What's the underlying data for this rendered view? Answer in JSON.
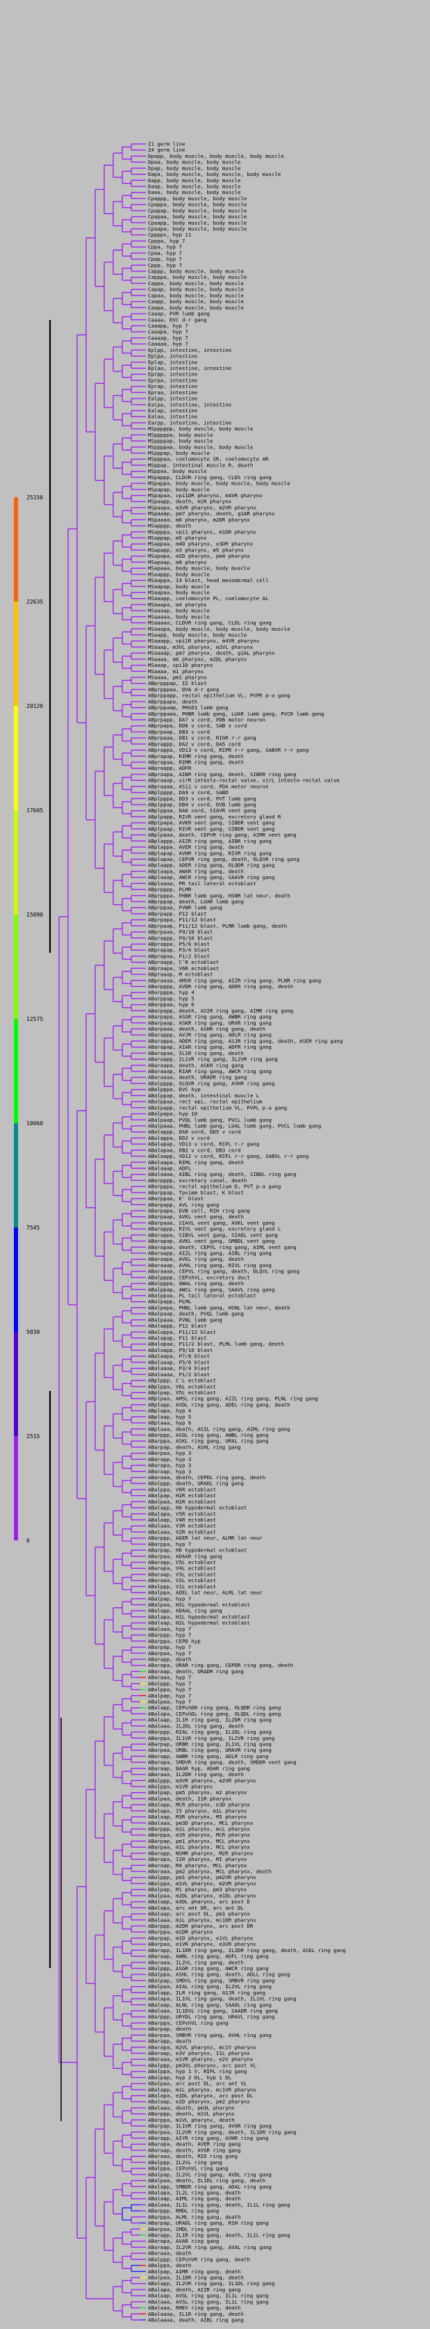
{
  "colors": {
    "background": "#c0c0c0",
    "branch": "#a020f0",
    "branch_alt": "#2020ff",
    "heat_yellow": "#ffff00",
    "heat_green": "#00ff00",
    "heat_red": "#ff0000",
    "trunk": "#000000"
  },
  "legend": {
    "ticks": [
      "25150",
      "22635",
      "20120",
      "17605",
      "15090",
      "12575",
      "10060",
      "7545",
      "5030",
      "2515",
      "0"
    ],
    "segments": [
      {
        "from": 0,
        "to": 2515,
        "color": "#a020f0"
      },
      {
        "from": 2515,
        "to": 5030,
        "color": "#5000d0"
      },
      {
        "from": 5030,
        "to": 7545,
        "color": "#0000ff"
      },
      {
        "from": 7545,
        "to": 10060,
        "color": "#008c8c"
      },
      {
        "from": 10060,
        "to": 12575,
        "color": "#00ff00"
      },
      {
        "from": 12575,
        "to": 15090,
        "color": "#80ff00"
      },
      {
        "from": 15090,
        "to": 17605,
        "color": "#c8ff00"
      },
      {
        "from": 17605,
        "to": 20120,
        "color": "#ffff00"
      },
      {
        "from": 20120,
        "to": 22635,
        "color": "#ffc000"
      },
      {
        "from": 22635,
        "to": 25150,
        "color": "#ff6000"
      }
    ]
  },
  "leaves": [
    "Z1 germ line",
    "Z4 germ line",
    "Dpapp, body muscle, body muscle, body muscle",
    "Dpaa, body muscle, body muscle",
    "Dpap, body muscle, body muscle",
    "Dapa, body muscle, body muscle, body muscle",
    "Dapp, body muscle, body muscle",
    "Daap, body muscle, body muscle",
    "Daaa, body muscle, body muscle",
    "Cpappp, body muscle, body muscle",
    "Cpappa, body muscle, body muscle",
    "Cpapap, body muscle, body muscle",
    "Cpapaa, body muscle, body muscle",
    "Cpaapp, body muscle, body muscle",
    "Cpaapa, body muscle, body muscle",
    "Cppppv, hyp 11",
    "Cpppa, hyp 7",
    "Cppa, hyp 7",
    "Cpaa, hyp 7",
    "Cpap, hyp 7",
    "Cppp, hyp 7",
    "Cappp, body muscle, body muscle",
    "Capppa, body muscle, body muscle",
    "Cappa, body muscle, body muscle",
    "Capap, body muscle, body muscle",
    "Capaa, body muscle, body muscle",
    "Caapp, body muscle, body muscle",
    "Caapa, body muscle, body muscle",
    "Caaap, PVR lumb gang",
    "Caaaa, DVC d-r gang",
    "Caaapp, hyp 7",
    "Caaapa, hyp 7",
    "Caaaap, hyp 7",
    "Caaaaa, hyp 7",
    "Eplpp, intestine, intestine",
    "Eplpa, intestine",
    "Eplap, intestine",
    "Eplaa, intestine, intestine",
    "Eprpp, intestine",
    "Eprpa, intestine",
    "Eprap, intestine",
    "Epraa, intestine",
    "Ealpp, intestine",
    "Ealpa, intestine, intestine",
    "Ealap, intestine",
    "Ealaa, intestine",
    "Earpp, intestine, intestine",
    "MSpppppp, body muscle, body muscle",
    "MSpppppa, body muscle",
    "MSppppap, body muscle",
    "MSppppaa, body muscle, body muscle",
    "MSpppap, body muscle",
    "MSpppaa, coelomocyte SR, coelomocyte AR",
    "MSppap, intestinal muscle R, death",
    "MSppaa, body muscle",
    "MSpappp, CLDVR ring gang, CLDS ring gang",
    "MSpappa, body muscle, body muscle, body muscle",
    "MSpapap, body muscle",
    "MSpapaa, vpi1DR pharynx, m4VR pharynx",
    "MSpaapp, death, m1R pharynx",
    "MSpaapa, m3VR pharynx, m2VR pharynx",
    "MSpaaap, pm7 pharynx, death, g1AR pharynx",
    "MSpaaaa, m6 pharynx, m2DR pharynx",
    "MSapppp, death",
    "MSapppa, vpi1 pharynx, m1DR pharynx",
    "MSappap, m5 pharynx",
    "MSappaa, m4D pharynx, e3DR pharynx",
    "MSapapp, m3 pharynx, m5 pharynx",
    "MSapapa, m2D pharynx, pm4 pharynx",
    "MSapaap, m8 pharynx",
    "MSapaaa, body muscle, body muscle",
    "MSaappp, body muscle",
    "MSaappa, I4 blast, head mesodermal cell",
    "MSaapap, body muscle",
    "MSaapaa, body muscle",
    "MSaaapp, coelomocyte PL, coelomocyte AL",
    "MSaaapa, m4 pharynx",
    "MSaaaap, body muscle",
    "MSaaaaa, body muscle",
    "MSaaaaa, CLDVR ring gang, CLDL ring gang",
    "MSaaapa, body muscle, body muscle, body muscle",
    "MSaapp, body muscle, body muscle",
    "MSaaapp, vpi1R pharynx, m4VR pharynx",
    "MSaaap, m3VL pharynx, m2VL pharynx",
    "MSaaaap, pm7 pharynx, death, g1AL pharynx",
    "MSaaaa, m6 pharynx, m2DL pharynx",
    "MSaaap, vpi1D pharynx",
    "MSaaaa, m1 pharynx",
    "MSaaaa, pm1 pharynx",
    "ABprpppap, I2 blast",
    "ABprpppaa, DVA d-r gang",
    "ABprppapp, rectal epithelium VL, PVPR p-a gang",
    "ABprppapa, death",
    "ABprppaap, PHSO1 lumb gang",
    "ABprppaaa, PHBR lumb gang, LUAR lumb gang, PVCR lumb gang",
    "ABprpapp, DA7 v cord, PDB motor neuron",
    "ABprpapa, DD6 v cord, SAB v cord",
    "ABprpaap, DB3 v cord",
    "ABprpaaa, DB1 v cord, RIGR r-r gang",
    "ABprappp, DA2 v cord, DA5 cord",
    "ABprappa, VD13 v cord, RIPR r-r gang, SABVR r-r gang",
    "ABprapap, RIMR ring gang, death",
    "ABprapaa, RIMR ring gang, death",
    "ABpraapp, ADFR",
    "ABpraapa, AIBR ring gang, death, SIBDR ring gang",
    "ABpraaap, virR intesto-rectal valve, virL intesto-rectal valve",
    "ABpraaaa, AS11 v cord, PDA motor neuron",
    "ABplpppp, DA9 v cord, SABD",
    "ABplpppa, DD3 v cord, PVT lumb gang",
    "ABplppap, DB4 v cord, DVB lumb gang",
    "ABplppaa, DA6 cord, SIAVR vent gang",
    "ABplpapp, RIVR vent gang, excretory gland R",
    "ABplpapa, AVKR vent gang, SIBDR vent gang",
    "ABplpaap, RIVR vent gang, SIBDR vent gang",
    "ABplpaaa, death, CEPVR ring gang, AIMR vent gang",
    "ABplappp, AIZR ring gang, AIBR ring gang",
    "ABplappa, AVER ring gang, death",
    "ABplapap, AVHR ring gang, RIVR ring gang",
    "ABplapaa, CEPVR ring gang, death, OLQVR ring gang",
    "ABplaapp, ADER ring gang, OLQDR ring gang",
    "ABplaapa, AWAR ring gang, death",
    "ABplaaap, AWCR ring gang, SAAVR ring gang",
    "ABplaaaa, PR tail lateral ectoblast",
    "ABprpppp, PLMR",
    "ABprpppa, PHBR lumb gang, HSNR lat neur, death",
    "ABprppap, death, LUAR lumb gang",
    "ABprppaa, PVNR lumb gang",
    "ABprpapp, P12 blast",
    "ABprpapa, P11/12 blast",
    "ABprpaap, P11/12 blast, PLMR lumb gang, death",
    "ABprpaaa, P9/10 blast",
    "ABprappp, P9/10 blast",
    "ABprappa, P5/6 blast",
    "ABprapap, P3/4 blast",
    "ABprapaa, P1/2 blast",
    "ABpraapp, C'R ectoblast",
    "ABpraapa, V6R ectoblast",
    "ABpraaap, M ectoblast",
    "ABpraaaa, AMSR ring gang, AIZR ring gang, PLNR ring gang",
    "ABarpppp, AVDR ring gang, ADER ring gang, death",
    "ABarpppa, hyp 4",
    "ABarppap, hyp 5",
    "ABarppaa, hyp 6",
    "ABarpapp, death, ASIR ring gang, AIMR ring gang",
    "ABarpapa, ASGR ring gang, AWBR ring gang",
    "ABarpaap, ASKR ring gang, URXR ring gang",
    "ABarpaaa, death, ASHR ring gang, death",
    "ABarappp, AVJR ring gang, ADLR ring gang",
    "ABarappa, ADER ring gang, ASJR ring gang, death, ASER ring gang",
    "ABarapap, AIAR ring gang, ADFR ring gang",
    "ABarapaa, IL1R ring gang, death",
    "ABaraapp, IL1VR ring gang, IL2VR ring gang",
    "ABaraapa, death, ASKR ring gang",
    "ABaraaap, RIAR ring gang, AWCR ring gang",
    "ABaraaaa, death, URADR ring gang",
    "ABalpppp, OLQVR ring gang, AVHR ring gang",
    "ABalpppa, DVC hyp",
    "ABalppap, death, intestinal muscle L",
    "ABalppaa, rect epi, rectal epithelium",
    "ABalpapp, rectal epithelium VL, PVPL p-a gang",
    "ABalpapa, hyp 10",
    "ABalpaap, PVQL lumb gang, PVCL lumb gang",
    "ABalpaaa, PHBL lumb gang, LUAL lumb gang, PVCL lumb gang",
    "ABalappp, DA8 cord, DD5 v cord",
    "ABalappa, DD2 v cord",
    "ABalapap, VD13 v cord, RIPL r-r gang",
    "ABalapaa, DB2 v cord, DB3 cord",
    "ABalaapp, VD12 v cord, RIFL r-r gang, SABVL r-r gang",
    "ABalaapa, RIML ring gang, death",
    "ABalaaap, ADFL",
    "ABalaaaa, AIBL ring gang, death, SIBDL ring gang",
    "ABarpppp, excretory canal, death",
    "ABarpppa, rectal epithelium D, PVT p-a gang",
    "ABarppap, fpvimm blast, K blast",
    "ABarppaa, K' blast",
    "ABarpapp, AVL ring gang",
    "ABarpapa, DVB cell, RIH ring gang",
    "ABarpaap, AVKL vent gang, death",
    "ABarpaaa, SIAVL vent gang, AVKL vent gang",
    "ABarappp, RIVL vent gang, excretory gland L",
    "ABarappa, SIBVL vent gang, SIADL vent gang",
    "ABarapap, AVKL vent gang, SMBDL vent gang",
    "ABarapaa, death, CEPVL ring gang, AIML vent gang",
    "ABaraapp, AIZL ring gang, AIBL ring gang",
    "ABaraapa, AVEL ring gang, death",
    "ABaraaap, AVHL ring gang, RIVL ring gang",
    "ABaraaaa, CEPVL ring gang, death, OLQVL ring gang",
    "ABalpppp, CEPshVL, excretory duct",
    "ABalpppa, AWAL ring gang, death",
    "ABalppap, AWCL ring gang, SAAVL ring gang",
    "ABalppaa, PL tail lateral ectoblast",
    "ABalpapp, PLML",
    "ABalpapa, PHBL lumb gang, HSNL lat neur, death",
    "ABalpaap, death, PVQL lumb gang",
    "ABalpaaa, PVNL lumb gang",
    "ABalappp, P12 blast",
    "ABalappa, P11/12 blast",
    "ABalapap, P11 blast",
    "ABalapaa, P11/2 blast, PLML lumb gang, death",
    "ABalaapp, P9/10 blast",
    "ABalaapa, P7/8 blast",
    "ABalaaap, P5/6 blast",
    "ABalaaaa, P3/4 blast",
    "ABalaaaa, P1/2 blast",
    "ABplppp, C'L ectoblast",
    "ABplppa, V6L ectoblast",
    "ABplpap, V5L ectoblast",
    "ABplpaa, AMSL ring gang, AIZL ring gang, PLNL ring gang",
    "ABplapp, AVDL ring gang, ADEL ring gang, death",
    "ABplapa, hyp 4",
    "ABplaap, hyp 5",
    "ABplaaa, hyp 6",
    "ABplaaa, death, ASIL ring gang, AIML ring gang",
    "ABarppp, ASGL ring gang, AWBL ring gang",
    "ABarppa, ASKL ring gang, URXL ring gang",
    "ABarpap, death, ASHL ring gang",
    "ABarpaa, hyp 3",
    "ABarapp, hyp 3",
    "ABarapa, hyp 3",
    "ABaraap, hyp 3",
    "ABaraaa, death, CEPDL ring gang, death",
    "ABalppp, death, URADL ring gang",
    "ABalppa, V6R ectoblast",
    "ABalpap, H2R ectoblast",
    "ABalpaa, H1R ectoblast",
    "ABalapp, H0 hypodermal ectoblast",
    "ABalapa, V5R ectoblast",
    "ABalaap, V4R ectoblast",
    "ABalaaa, V3R ectoblast",
    "ABalaaa, V2R ectoblast",
    "ABarppp, ADER lat neur, ALMR lat neur",
    "ABarppa, hyp 7",
    "ABarpap, H0 hypodermal ectoblast",
    "ABarpaa, ADAAR ring gang",
    "ABarapp, V5L ectoblast",
    "ABarapa, V4L ectoblast",
    "ABaraap, V3L ectoblast",
    "ABaraaa, V2L ectoblast",
    "ABalppp, V1L ectoblast",
    "ABalppa, ADEL lat neur, ALML lat neur",
    "ABalpap, hyp 7",
    "ABalpaa, H2L hypodermal ectoblast",
    "ABalapp, ADAAL ring gang",
    "ABalapa, H1L hypodermal ectoblast",
    "ABalaap, H2L hypodermal ectoblast",
    "ABalaaa, hyp 7",
    "ABarppp, hyp 7",
    "ABarppa, CEPD hyp",
    "ABarpap, hyp 7",
    "ABarpaa, hyp 7",
    "ABarapp, death",
    "ABarapa, URAR ring gang, CEPDR ring gang, death",
    "ABaraap, death, URADR ring gang",
    "ABaraaa, hyp 7",
    "ABalppp, hyp 7",
    "ABalppa, hyp 7",
    "ABalpap, hyp 7",
    "ABalpaa, hyp 7",
    "ABalapp, CEPshDR ring gang, OLQDR ring gang",
    "ABalapa, CEPshDL ring gang, OLQDL ring gang",
    "ABalaap, IL1R ring gang, IL2DR ring gang",
    "ABalaaa, IL2DL ring gang, death",
    "ABarppp, RIAL ring gang, IL1DL ring gang",
    "ABarppa, IL1VR ring gang, IL2VR ring gang",
    "ABarpap, URBR ring gang, IL1VL ring gang",
    "ABarpaa, URBL ring gang, URAVR ring gang",
    "ABarapp, AWBR ring gang, ADLR ring gang",
    "ABarapa, SMDVR ring gang, death, SMDDR vent gang",
    "ABaraap, BAGR hyp, ADAR ring gang",
    "ABaraaa, IL2DR ring gang, death",
    "ABalppp, m3VR pharynx, m2VR pharynx",
    "ABalppa, m1VR pharynx",
    "ABalpap, pm5 pharynx, m2 pharynx",
    "ABalpaa, death, I1R pharynx",
    "ABalapp, MCR pharynx, e3D pharynx",
    "ABalapa, I5 pharynx, m1L pharynx",
    "ABalaap, M3R pharynx, M5 pharynx",
    "ABalaaa, pm3D pharynx, MCL pharynx",
    "ABarppp, m1L pharynx, mcL pharynx",
    "ABarppa, m1R pharynx, MCR pharynx",
    "ABarpap, pm1 pharynx, MCL pharynx",
    "ABarpaa, m1L pharynx, MCL pharynx",
    "ABarapp, NSMR pharynx, M2R pharynx",
    "ABarapa, I2R pharynx, MI pharynx",
    "ABaraap, M4 pharynx, MCL pharynx",
    "ABaraaa, pm2 pharynx, MCL pharynx, death",
    "ABalppp, pm1 pharynx, pm2VR pharynx",
    "ABalppa, m1VL pharynx, m2VR pharynx",
    "ABalpap, M1 pharynx, pm3 pharynx",
    "ABalpaa, m2DL pharynx, m1DL pharynx",
    "ABalapp, m3DL pharynx, arc post D",
    "ABalapa, arc ant DR, arc ant DL",
    "ABalaap, arc post DL, pm1 pharynx",
    "ABalaaa, m1L pharynx, mc1DR pharynx",
    "ABarppp, m2DR pharynx, arc post DR",
    "ABarppa, m1DR pharynx",
    "ABarpap, m1D pharynx, e1VL pharynx",
    "ABarpaa, e1VR pharynx, e3VR pharynx",
    "ABarapp, IL1DR ring gang, IL2DR ring gang, death, ASEL ring gang",
    "ABaraap, AWBL ring gang, ADFL ring gang",
    "ABaraaa, IL2VL ring gang, death",
    "ABalppp, ASGR ring gang, AWCR ring gang",
    "ABalppa, ASHL ring gang, death, ADLL ring gang",
    "ABalpap, SMDVL ring gang, SMBVR ring gang",
    "ABalpaa, AIAL ring gang, IL2VL ring gang",
    "ABalapp, ILR ring gang, ASJR ring gang",
    "ABalapa, IL1VL ring gang, death, IL1VL ring gang",
    "ABalaap, ALNL ring gang, SAADL ring gang",
    "ABalaaa, IL1DVL ring gang, SAADR ring gang",
    "ABarppp, URYDL ring gang, URAVL ring gang",
    "ABarppa, CEPshVL ring gang",
    "ABarpap, death",
    "ABarpaa, SMBVR ring gang, AVHL ring gang",
    "ABarapp, death",
    "ABarapa, m2VL pharynx, mc1V pharynx",
    "ABaraap, e3V pharynx, I1L pharynx",
    "ABaraaa, m1VR pharynx, e2V pharynx",
    "ABalppp, pm3VL pharynx, arc post VL",
    "ABalppa, hyp 1 V, RIPL ring gang",
    "ABalpap, hyp 2 DL, hyp 1 DL",
    "ABalpaa, arc post DL, arc ant VL",
    "ABalapp, m1L pharynx, mc1VR pharynx",
    "ABalapa, e2DL pharynx, arc post DL",
    "ABalaap, e2D pharynx, pm2 pharynx",
    "ABalaaa, death, pm3L pharynx",
    "ABarppp, death, m1VL pharynx",
    "ABarppa, m1VL pharynx, death",
    "ABarpap, IL1VR ring gang, AVGR ring gang",
    "ABarpaa, IL2VR ring gang, death, IL1DR ring gang",
    "ABarapp, AIYR ring gang, AVHR ring gang",
    "ABarapa, death, AVER ring gang",
    "ABaraap, death, AVGR ring gang",
    "ABaraaa, death, RID ring gang",
    "ABalppp, IL2VL ring gang",
    "ABalppa, CEPshVL ring gang",
    "ABalpap, IL2VL ring gang, AVDL ring gang",
    "ABalpaa, death, IL1DL ring gang, death",
    "ABalapp, SMBDR ring gang, ADAL ring gang",
    "ABalapa, IL2L ring gang, death",
    "ABalaap, AIML ring gang, death",
    "ABalaaa, IL1L ring gang, death, IL1L ring gang",
    "ABarppp, RMDL ring gang",
    "ABarppa, ALML ring gang, death",
    "ABarpap, URADL ring gang, RIH ring gang",
    "ABarpaa, SMDL ring gang",
    "ABarapp, IL1R ring gang, death, IL1L ring gang",
    "ABarapa, AVAR ring gang",
    "ABaraap, IL2VR ring gang, AVAL ring gang",
    "ABaraaa, death",
    "ABalppp, CEPshVR ring gang, death",
    "ABalppa, death",
    "ABalpap, AIMR ring gang, death",
    "ABalpaa, IL1DR ring gang, death",
    "ABalapp, IL2VR ring gang, IL1DL ring gang",
    "ABalapa, death, AIZR ring gang",
    "ABalaap, AVGL ring gang, IL1L ring gang",
    "ABalaaa, AVSL ring gang, IL1L ring gang",
    "ABalaaa, RMEV ring gang, death",
    "ABalaaaa, IL1R ring gang, death",
    "ABalaaaa, death, AIBL ring gang"
  ]
}
